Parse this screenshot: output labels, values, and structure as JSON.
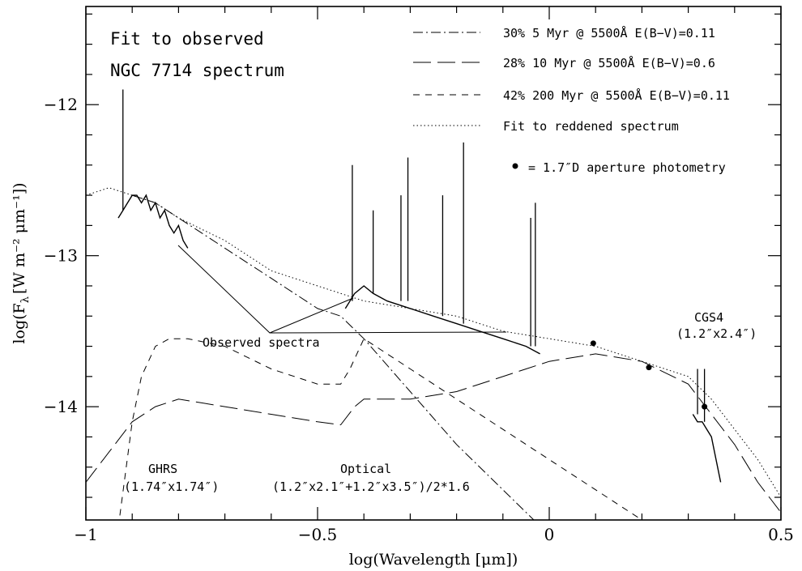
{
  "chart_data": {
    "type": "line",
    "title": "",
    "annotation_title": [
      "Fit to observed",
      "NGC 7714 spectrum"
    ],
    "xlabel": "log(Wavelength [μm])",
    "ylabel_main": "log(F",
    "ylabel_sub": "λ",
    "ylabel_rest": "[W m⁻² μm⁻¹])",
    "xlim": [
      -1.0,
      0.5
    ],
    "ylim": [
      -14.75,
      -11.35
    ],
    "x_ticks": [
      -1,
      -0.5,
      0,
      0.5
    ],
    "x_tick_labels": [
      "−1",
      "−0.5",
      "0",
      "0.5"
    ],
    "y_ticks": [
      -14,
      -13,
      -12
    ],
    "y_tick_labels": [
      "−14",
      "−13",
      "−12"
    ],
    "legend": {
      "placement": "top-right",
      "entries": [
        {
          "label": "30% 5 Myr @ 5500Å E(B−V)=0.11",
          "style": "dash-dot"
        },
        {
          "label": "28% 10 Myr @ 5500Å E(B−V)=0.6",
          "style": "long-dash"
        },
        {
          "label": "42% 200 Myr @ 5500Å E(B−V)=0.11",
          "style": "short-dash"
        },
        {
          "label": "Fit to reddened spectrum",
          "style": "dotted"
        }
      ],
      "photometry_label": "= 1.7″D aperture photometry"
    },
    "annotations": {
      "observed": "Observed spectra",
      "ghrs": [
        "GHRS",
        "(1.74″x1.74″)"
      ],
      "optical": [
        "Optical",
        "(1.2″x2.1″+1.2″x3.5″)/2*1.6"
      ],
      "cgs4": [
        "CGS4",
        "(1.2″x2.4″)"
      ]
    },
    "series": [
      {
        "name": "30% 5 Myr @ 5500Å E(B−V)=0.11",
        "style": "dash-dot",
        "x": [
          -0.9,
          -0.85,
          -0.8,
          -0.75,
          -0.7,
          -0.6,
          -0.5,
          -0.45,
          -0.4,
          -0.3,
          -0.2,
          -0.1,
          0.0,
          0.05,
          0.1
        ],
        "y": [
          -12.6,
          -12.65,
          -12.75,
          -12.85,
          -12.95,
          -13.15,
          -13.35,
          -13.4,
          -13.55,
          -13.9,
          -14.25,
          -14.55,
          -14.85,
          -15.0,
          -15.2
        ]
      },
      {
        "name": "28% 10 Myr @ 5500Å E(B−V)=0.6",
        "style": "long-dash",
        "x": [
          -1.0,
          -0.95,
          -0.9,
          -0.85,
          -0.8,
          -0.7,
          -0.6,
          -0.5,
          -0.45,
          -0.42,
          -0.4,
          -0.3,
          -0.2,
          -0.1,
          -0.05,
          0.0,
          0.1,
          0.2,
          0.3,
          0.35,
          0.4,
          0.45,
          0.5
        ],
        "y": [
          -14.5,
          -14.3,
          -14.1,
          -14.0,
          -13.95,
          -14.0,
          -14.05,
          -14.1,
          -14.12,
          -14.0,
          -13.95,
          -13.95,
          -13.9,
          -13.8,
          -13.75,
          -13.7,
          -13.65,
          -13.7,
          -13.85,
          -14.05,
          -14.25,
          -14.5,
          -14.7
        ]
      },
      {
        "name": "42% 200 Myr @ 5500Å E(B−V)=0.11",
        "style": "short-dash",
        "x": [
          -0.93,
          -0.9,
          -0.88,
          -0.85,
          -0.82,
          -0.78,
          -0.7,
          -0.6,
          -0.5,
          -0.45,
          -0.43,
          -0.4,
          -0.3,
          -0.2,
          -0.1,
          0.0,
          0.1,
          0.2,
          0.25
        ],
        "y": [
          -14.8,
          -14.1,
          -13.8,
          -13.6,
          -13.55,
          -13.55,
          -13.6,
          -13.75,
          -13.85,
          -13.85,
          -13.75,
          -13.55,
          -13.75,
          -13.95,
          -14.15,
          -14.35,
          -14.55,
          -14.75,
          -14.85
        ]
      },
      {
        "name": "Fit to reddened spectrum",
        "style": "dotted",
        "x": [
          -1.0,
          -0.95,
          -0.9,
          -0.85,
          -0.8,
          -0.7,
          -0.6,
          -0.5,
          -0.45,
          -0.4,
          -0.3,
          -0.2,
          -0.1,
          0.0,
          0.1,
          0.2,
          0.25,
          0.3,
          0.35,
          0.4,
          0.45,
          0.5
        ],
        "y": [
          -12.6,
          -12.55,
          -12.6,
          -12.65,
          -12.75,
          -12.9,
          -13.1,
          -13.2,
          -13.25,
          -13.3,
          -13.35,
          -13.4,
          -13.5,
          -13.55,
          -13.6,
          -13.7,
          -13.75,
          -13.8,
          -13.95,
          -14.15,
          -14.35,
          -14.6
        ]
      },
      {
        "name": "GHRS observed",
        "style": "solid",
        "x": [
          -0.93,
          -0.92,
          -0.91,
          -0.9,
          -0.89,
          -0.88,
          -0.87,
          -0.86,
          -0.85,
          -0.84,
          -0.83,
          -0.82,
          -0.81,
          -0.8,
          -0.79,
          -0.78
        ],
        "y": [
          -12.75,
          -12.7,
          -12.65,
          -12.6,
          -12.6,
          -12.65,
          -12.6,
          -12.7,
          -12.65,
          -12.75,
          -12.7,
          -12.8,
          -12.85,
          -12.8,
          -12.9,
          -12.95
        ]
      },
      {
        "name": "Optical observed",
        "style": "solid",
        "x": [
          -0.44,
          -0.42,
          -0.4,
          -0.38,
          -0.35,
          -0.3,
          -0.25,
          -0.2,
          -0.15,
          -0.1,
          -0.05,
          -0.02
        ],
        "y": [
          -13.35,
          -13.25,
          -13.2,
          -13.25,
          -13.3,
          -13.35,
          -13.4,
          -13.45,
          -13.5,
          -13.55,
          -13.6,
          -13.65
        ]
      },
      {
        "name": "CGS4 observed",
        "style": "solid",
        "x": [
          0.31,
          0.32,
          0.33,
          0.34,
          0.35,
          0.36,
          0.37
        ],
        "y": [
          -14.05,
          -14.1,
          -14.1,
          -14.15,
          -14.2,
          -14.35,
          -14.5
        ]
      }
    ],
    "emission_lines": [
      {
        "x": -0.92,
        "base": -12.7,
        "peak": -11.9
      },
      {
        "x": -0.425,
        "base": -13.3,
        "peak": -12.4
      },
      {
        "x": -0.38,
        "base": -13.25,
        "peak": -12.7
      },
      {
        "x": -0.32,
        "base": -13.3,
        "peak": -12.6
      },
      {
        "x": -0.305,
        "base": -13.3,
        "peak": -12.35
      },
      {
        "x": -0.23,
        "base": -13.4,
        "peak": -12.6
      },
      {
        "x": -0.185,
        "base": -13.45,
        "peak": -12.25
      },
      {
        "x": -0.04,
        "base": -13.6,
        "peak": -12.75
      },
      {
        "x": -0.03,
        "base": -13.6,
        "peak": -12.65
      },
      {
        "x": 0.32,
        "base": -14.05,
        "peak": -13.75
      },
      {
        "x": 0.335,
        "base": -14.1,
        "peak": -13.75
      }
    ],
    "photometry": {
      "x": [
        0.095,
        0.215,
        0.335
      ],
      "y": [
        -13.58,
        -13.74,
        -14.0
      ]
    }
  }
}
